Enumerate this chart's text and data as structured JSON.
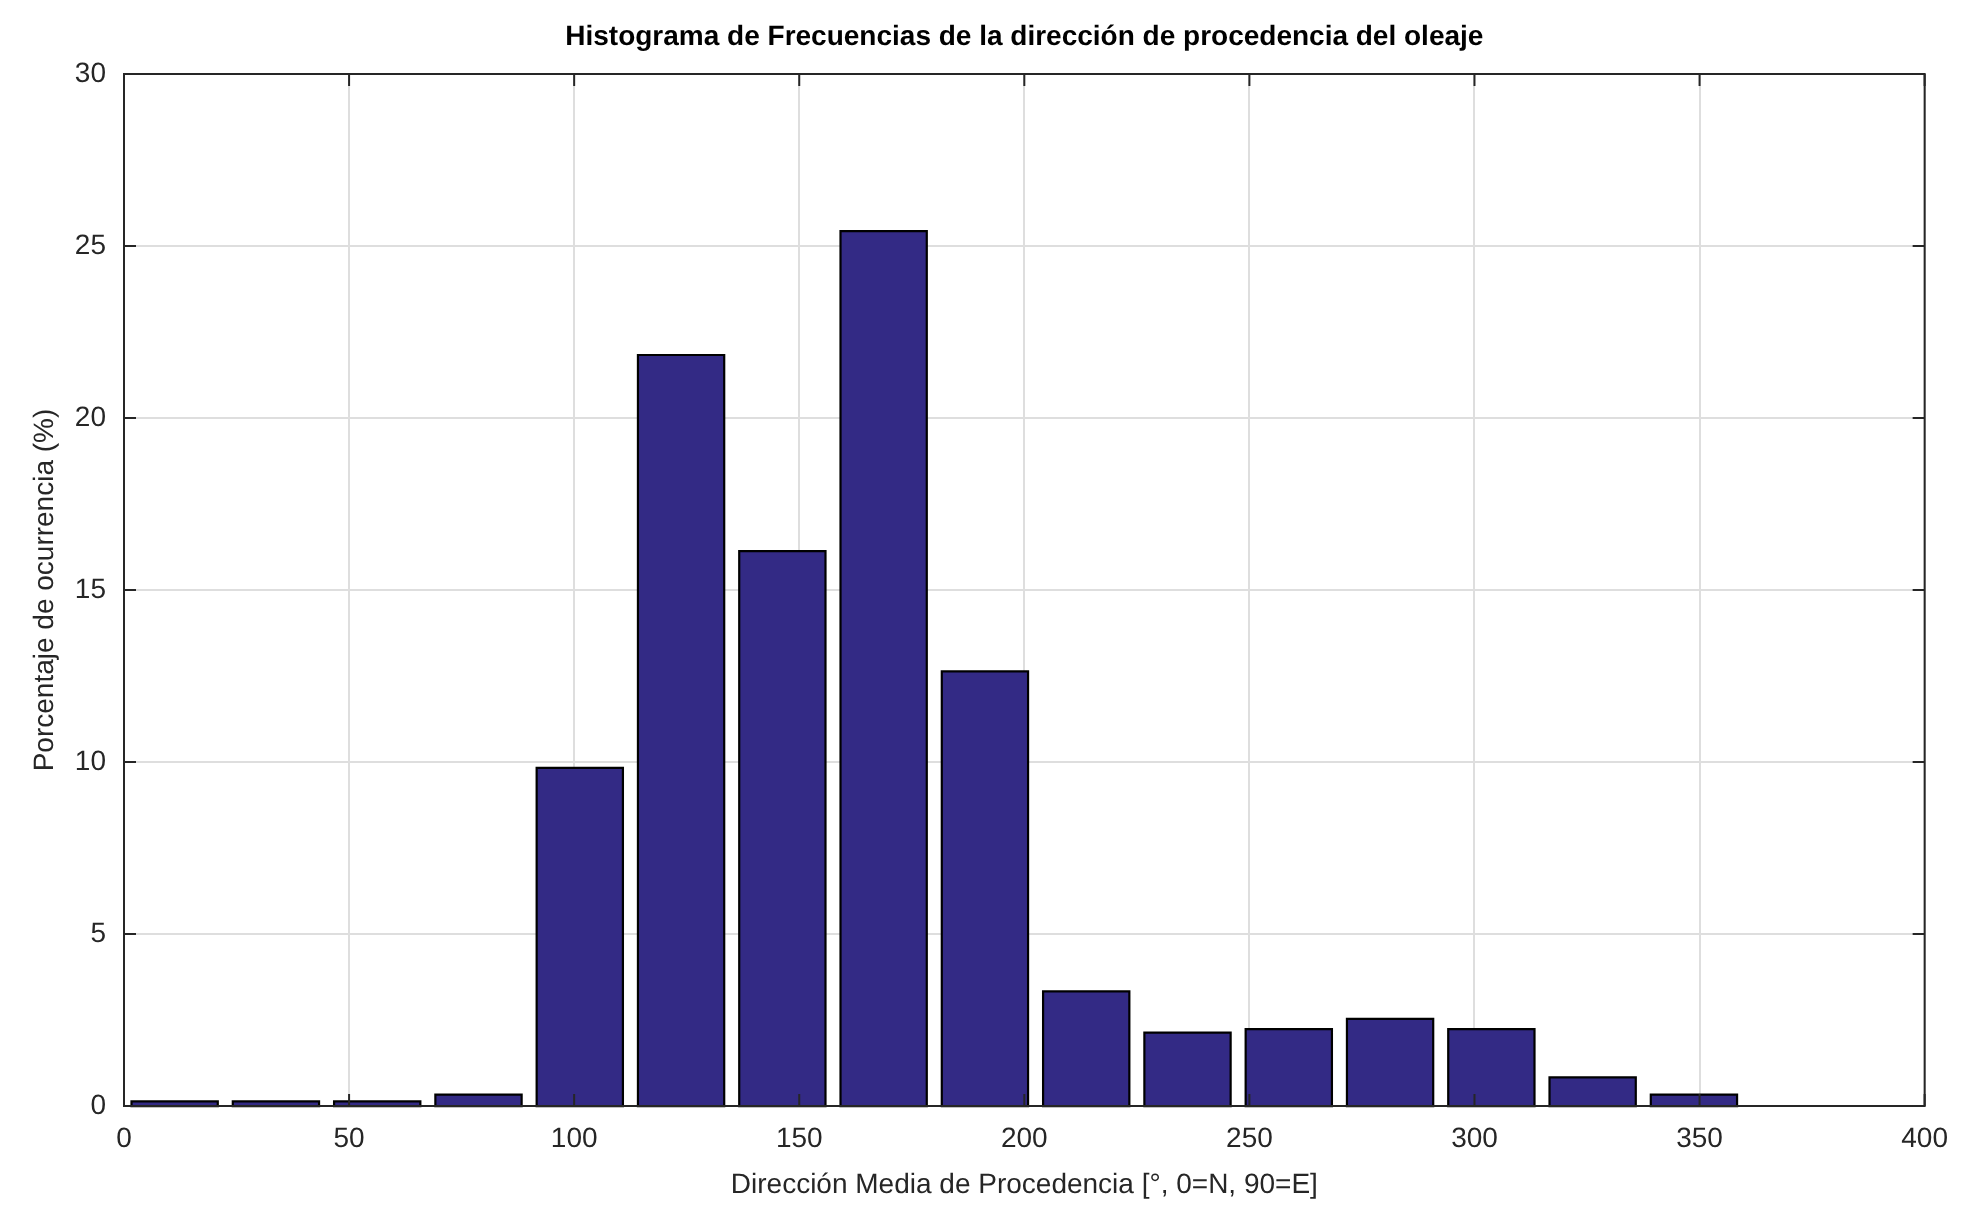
{
  "chart_data": {
    "type": "histogram",
    "title": "Histograma de Frecuencias de la dirección de procedencia del oleaje",
    "xlabel": "Dirección Media de Procedencia [°, 0=N, 90=E]",
    "ylabel": "Porcentaje de ocurrencia (%)",
    "bins": [
      0,
      22.5,
      45,
      67.5,
      90,
      112.5,
      135,
      157.5,
      180,
      202.5,
      225,
      247.5,
      270,
      292.5,
      315,
      337.5,
      360
    ],
    "values": [
      0.1,
      0.1,
      0.1,
      0.3,
      9.8,
      21.8,
      16.1,
      25.4,
      12.6,
      3.3,
      2.1,
      2.2,
      2.5,
      2.2,
      0.8,
      0.3
    ],
    "color": "#332a85",
    "xlim": [
      0,
      400
    ],
    "xticks": [
      0,
      50,
      100,
      150,
      200,
      250,
      300,
      350,
      400
    ],
    "ylim": [
      0,
      30
    ],
    "yticks": [
      0,
      5,
      10,
      15,
      20,
      25,
      30
    ],
    "grid": true
  }
}
